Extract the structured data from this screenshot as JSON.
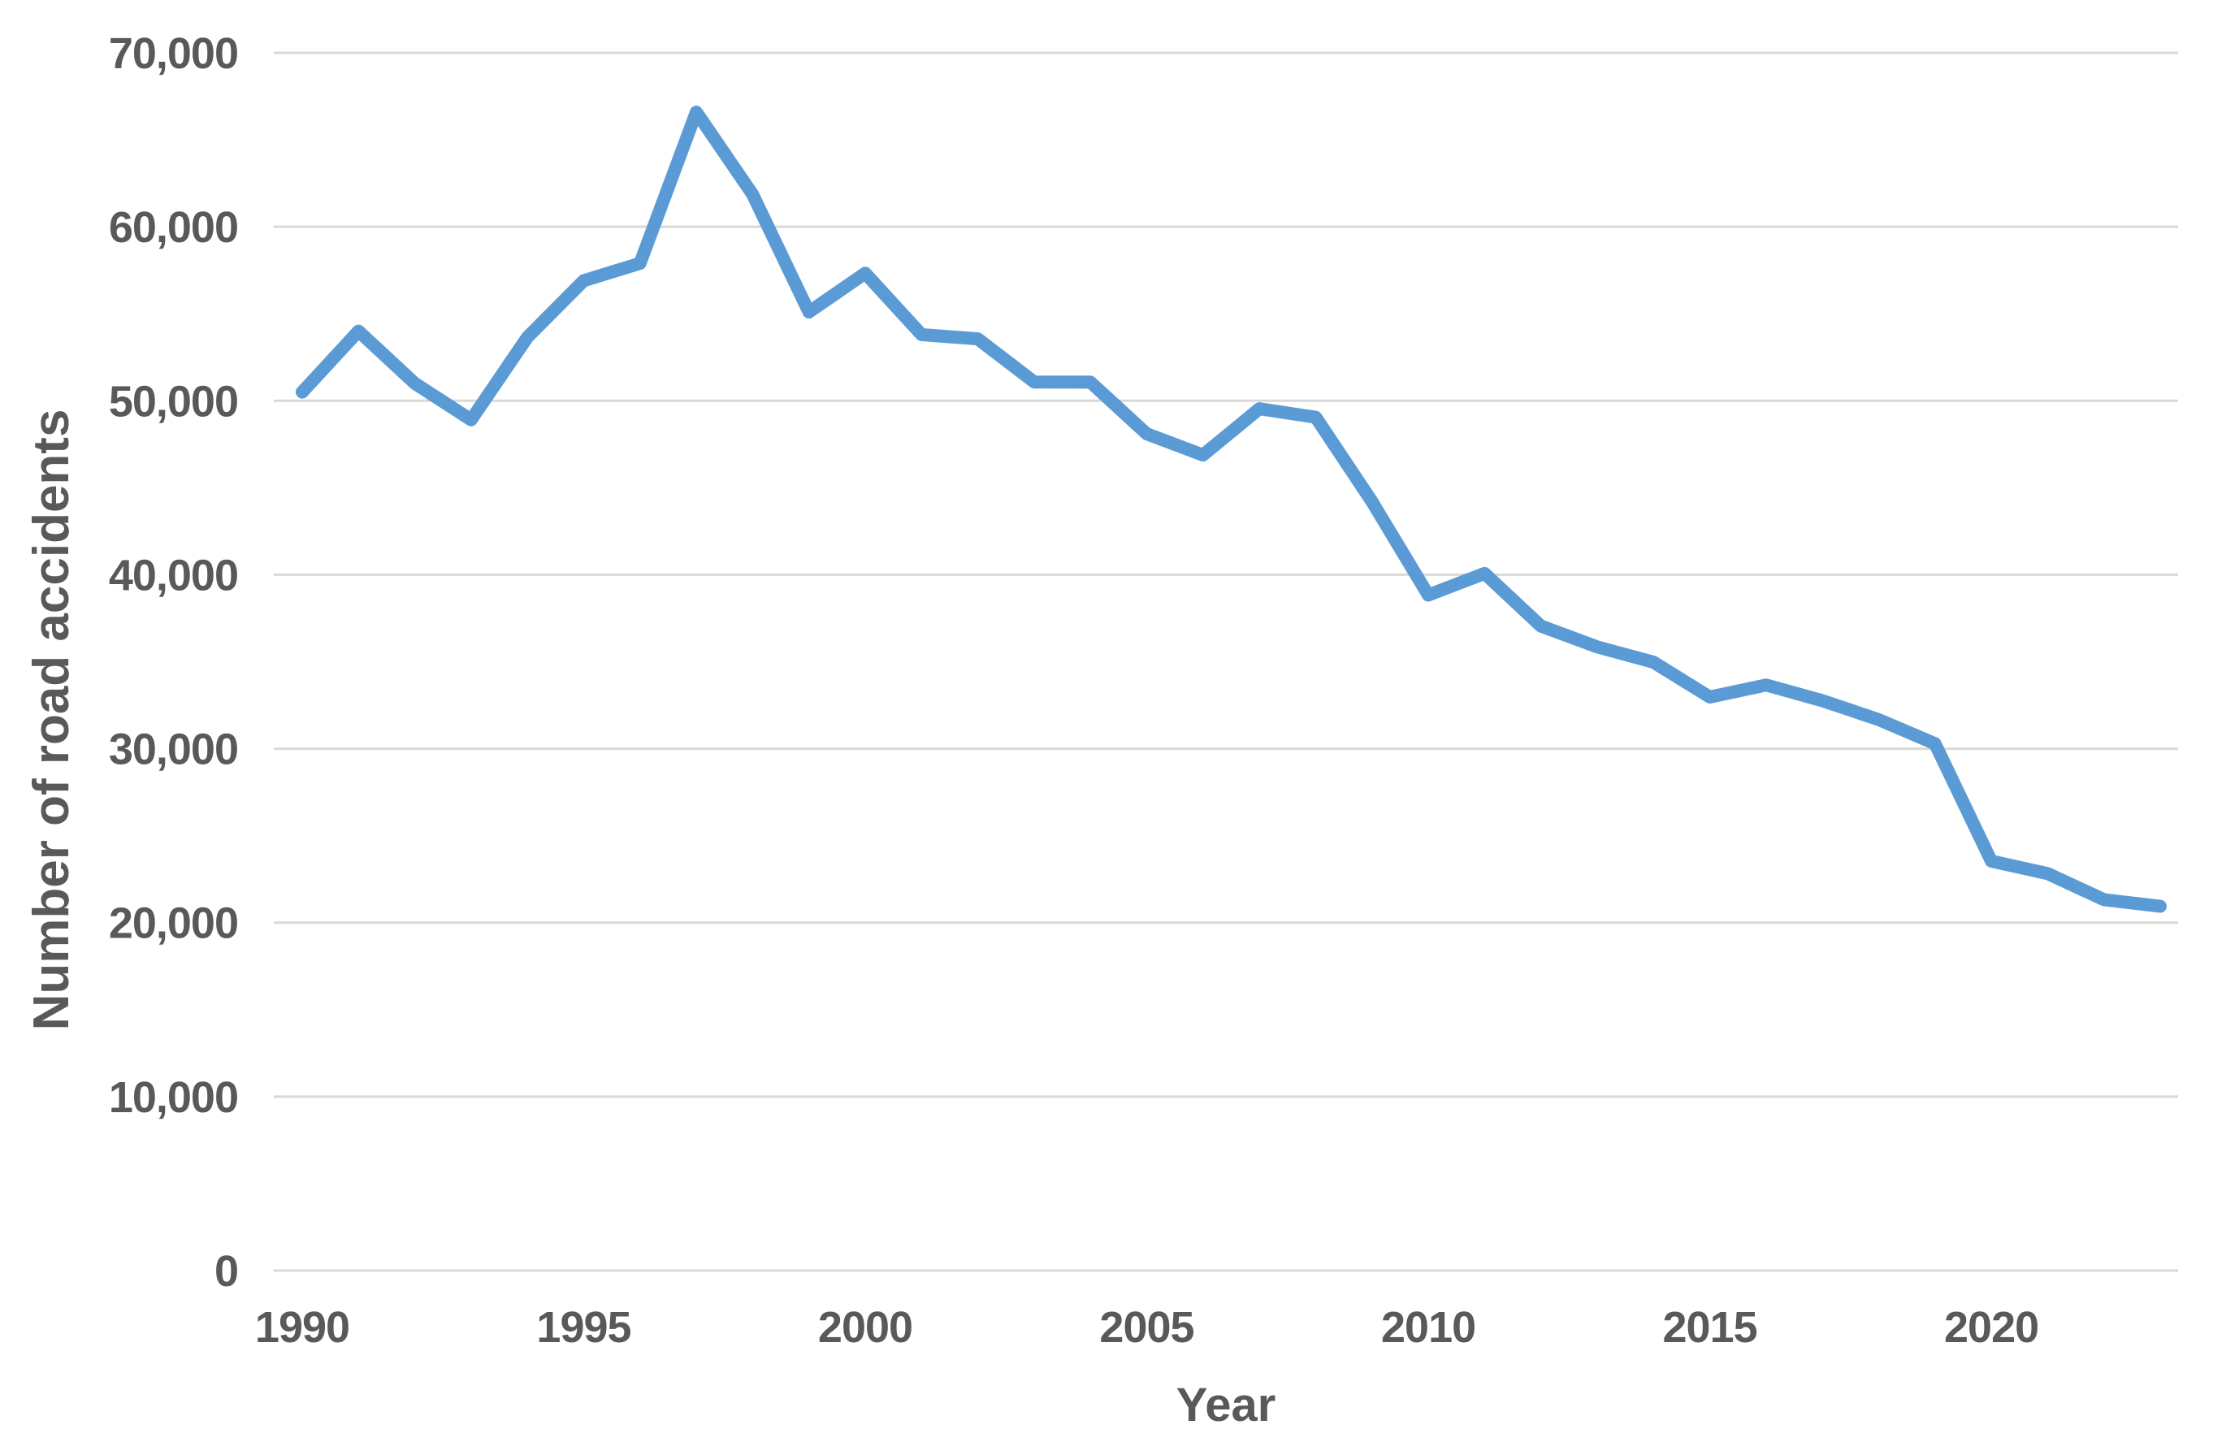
{
  "chart_data": {
    "type": "line",
    "title": "",
    "xlabel": "Year",
    "ylabel": "Number of road accidents",
    "categories": [
      1990,
      1991,
      1992,
      1993,
      1994,
      1995,
      1996,
      1997,
      1998,
      1999,
      2000,
      2001,
      2002,
      2003,
      2004,
      2005,
      2006,
      2007,
      2008,
      2009,
      2010,
      2011,
      2012,
      2013,
      2014,
      2015,
      2016,
      2017,
      2018,
      2019,
      2020,
      2021,
      2022,
      2023
    ],
    "series": [
      {
        "name": "Number of road accidents",
        "values": [
          50500,
          54000,
          51000,
          48900,
          53650,
          56900,
          57900,
          66590,
          61860,
          55100,
          57330,
          53800,
          53560,
          51080,
          51070,
          48100,
          46880,
          49540,
          49050,
          44200,
          38830,
          40070,
          37050,
          35850,
          34970,
          32970,
          33660,
          32760,
          31670,
          30290,
          23540,
          22820,
          21320,
          20940
        ]
      }
    ],
    "ylim": [
      0,
      70000
    ],
    "ytick_values": [
      0,
      10000,
      20000,
      30000,
      40000,
      50000,
      60000,
      70000
    ],
    "ytick_labels": [
      "0",
      "10,000",
      "20,000",
      "30,000",
      "40,000",
      "50,000",
      "60,000",
      "70,000"
    ],
    "xtick_values": [
      1990,
      1995,
      2000,
      2005,
      2010,
      2015,
      2020
    ],
    "xtick_labels": [
      "1990",
      "1995",
      "2000",
      "2005",
      "2010",
      "2015",
      "2020"
    ],
    "grid": "horizontal",
    "legend_position": "none",
    "marker": "none",
    "colors": {
      "line": "#5B9BD5",
      "gridline": "#D9D9D9",
      "axis_text": "#595959",
      "background": "#FFFFFF"
    }
  }
}
